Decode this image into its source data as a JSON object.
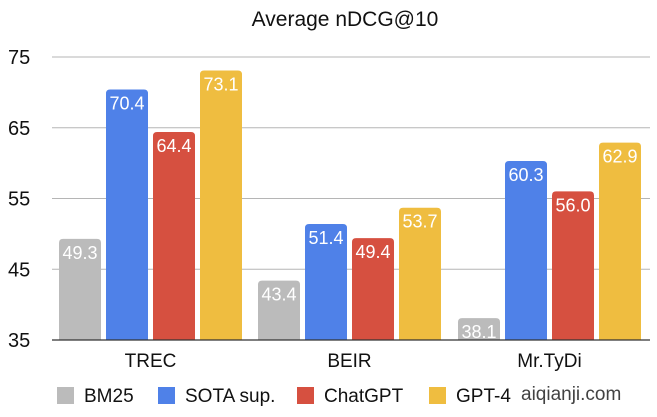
{
  "chart_data": {
    "type": "bar",
    "title": "Average nDCG@10",
    "xlabel": "",
    "ylabel": "",
    "categories": [
      "TREC",
      "BEIR",
      "Mr.TyDi"
    ],
    "series": [
      {
        "name": "BM25",
        "color": "#bbbbbb",
        "values": [
          49.3,
          43.4,
          38.1
        ]
      },
      {
        "name": "SOTA sup.",
        "color": "#4f81e8",
        "values": [
          70.4,
          51.4,
          60.3
        ]
      },
      {
        "name": "ChatGPT",
        "color": "#d65040",
        "values": [
          64.4,
          49.4,
          56.0
        ]
      },
      {
        "name": "GPT-4",
        "color": "#efbd40",
        "values": [
          73.1,
          53.7,
          62.9
        ]
      }
    ],
    "ylim": [
      35,
      75
    ],
    "yticks": [
      "35",
      "45",
      "55",
      "65",
      "75"
    ],
    "grid": true,
    "legend_position": "bottom"
  },
  "watermark": "aiqianji.com"
}
